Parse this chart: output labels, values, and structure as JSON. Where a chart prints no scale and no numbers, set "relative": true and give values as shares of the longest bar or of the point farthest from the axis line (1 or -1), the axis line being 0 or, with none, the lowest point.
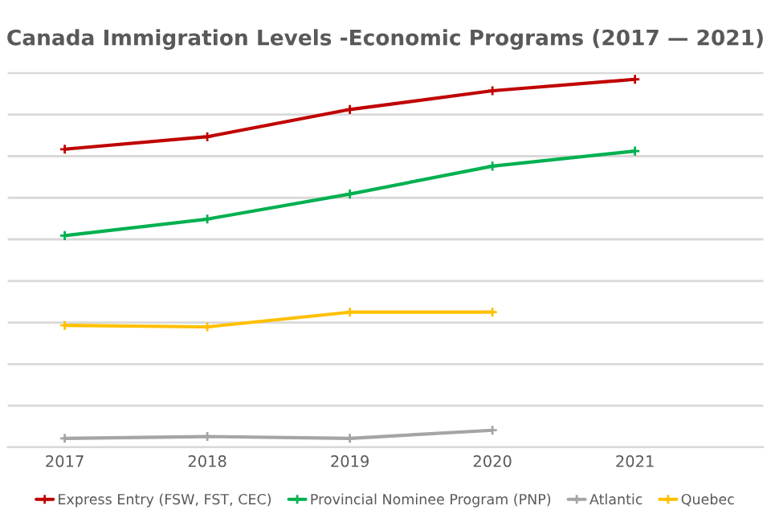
{
  "chart_data": {
    "type": "line",
    "title": "Canada Immigration Levels -Economic Programs (2017 — 2021)",
    "categories": [
      "2017",
      "2018",
      "2019",
      "2020",
      "2021"
    ],
    "relative": true,
    "grid": "y",
    "legend": "bottom",
    "marker": "cross",
    "line_style": "solid",
    "series": [
      {
        "name": "Express Entry (FSW, FST, CEC)",
        "color": "#c00000",
        "values": [
          0.81,
          0.844,
          0.918,
          0.969,
          1
        ]
      },
      {
        "name": "Provincial Nominee Program (PNP)",
        "color": "#00b050",
        "values": [
          0.575,
          0.62,
          0.688,
          0.764,
          0.805
        ]
      },
      {
        "name": "Atlantic",
        "color": "#a5a5a5",
        "values": [
          0.024,
          0.029,
          0.024,
          0.046,
          null
        ]
      },
      {
        "name": "Quebec",
        "color": "#ffc000",
        "values": [
          0.331,
          0.327,
          0.367,
          0.367,
          null
        ]
      }
    ]
  }
}
